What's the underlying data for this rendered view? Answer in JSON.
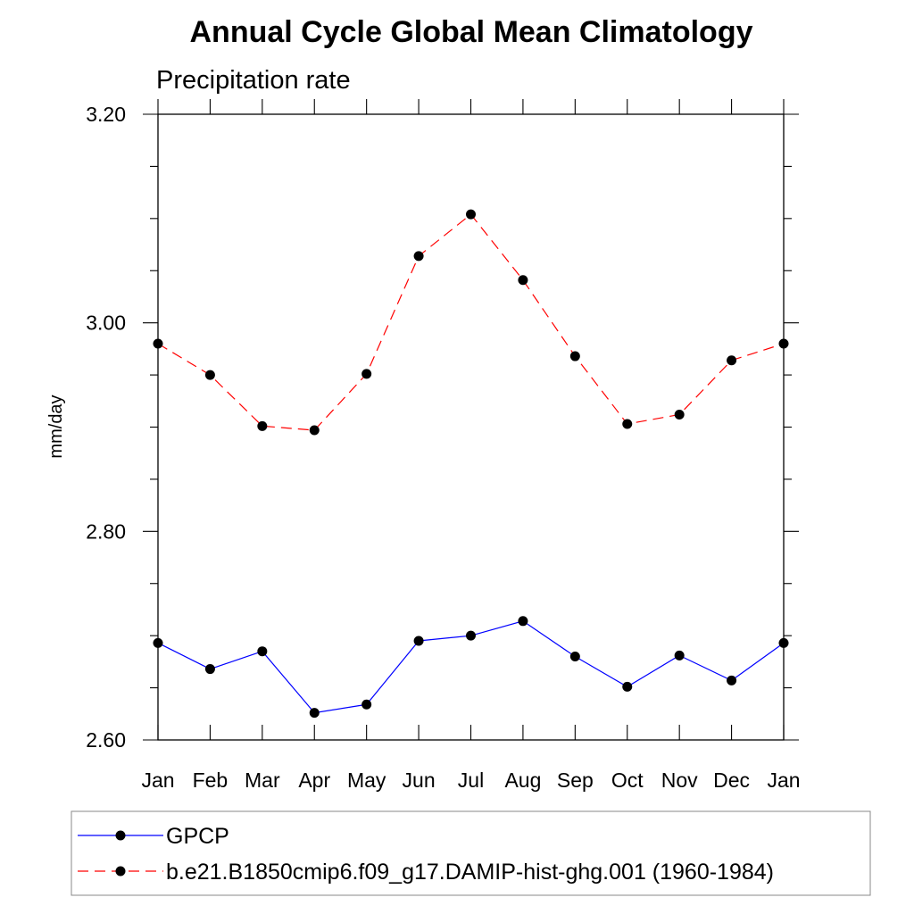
{
  "chart_data": {
    "type": "line",
    "title": "Annual Cycle Global Mean Climatology",
    "subtitle": "Precipitation rate",
    "xlabel": "",
    "ylabel": "mm/day",
    "categories": [
      "Jan",
      "Feb",
      "Mar",
      "Apr",
      "May",
      "Jun",
      "Jul",
      "Aug",
      "Sep",
      "Oct",
      "Nov",
      "Dec",
      "Jan"
    ],
    "ylim": [
      2.6,
      3.2
    ],
    "yticks": [
      "2.60",
      "2.80",
      "3.00",
      "3.20"
    ],
    "grid": false,
    "legend_position": "bottom",
    "series": [
      {
        "name": "GPCP",
        "color": "#0000ff",
        "line_style": "solid",
        "marker": "filled-circle",
        "values": [
          2.693,
          2.668,
          2.685,
          2.626,
          2.634,
          2.695,
          2.7,
          2.714,
          2.68,
          2.651,
          2.681,
          2.657,
          2.693
        ]
      },
      {
        "name": "b.e21.B1850cmip6.f09_g17.DAMIP-hist-ghg.001 (1960-1984)",
        "color": "#ff0000",
        "line_style": "dashed",
        "marker": "filled-circle",
        "values": [
          2.98,
          2.95,
          2.901,
          2.897,
          2.951,
          3.064,
          3.104,
          3.041,
          2.968,
          2.903,
          2.912,
          2.964,
          2.98
        ]
      }
    ]
  }
}
